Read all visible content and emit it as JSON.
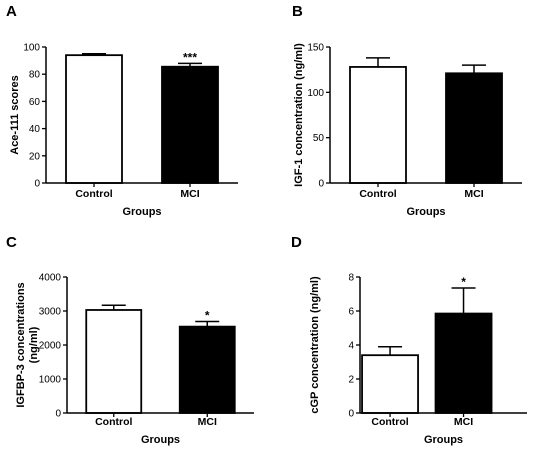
{
  "chart_data": [
    {
      "panel": "A",
      "type": "bar",
      "categories": [
        "Control",
        "MCI"
      ],
      "values": [
        94,
        85.5
      ],
      "errors": [
        1,
        2.5
      ],
      "bar_fills": [
        "#ffffff",
        "#000000"
      ],
      "significance": [
        "",
        "***"
      ],
      "xlabel": "Groups",
      "ylabel": "Ace-111 scores",
      "ylim": [
        0,
        100
      ],
      "yticks": [
        0,
        20,
        40,
        60,
        80,
        100
      ],
      "grid": false
    },
    {
      "panel": "B",
      "type": "bar",
      "categories": [
        "Control",
        "MCI"
      ],
      "values": [
        128,
        121
      ],
      "errors": [
        10,
        9
      ],
      "bar_fills": [
        "#ffffff",
        "#000000"
      ],
      "significance": [
        "",
        ""
      ],
      "xlabel": "Groups",
      "ylabel": "IGF-1 concentration (ng/ml)",
      "ylim": [
        0,
        150
      ],
      "yticks": [
        0,
        50,
        100,
        150
      ],
      "grid": false
    },
    {
      "panel": "C",
      "type": "bar",
      "categories": [
        "Control",
        "MCI"
      ],
      "values": [
        3030,
        2540
      ],
      "errors": [
        140,
        150
      ],
      "bar_fills": [
        "#ffffff",
        "#000000"
      ],
      "significance": [
        "",
        "*"
      ],
      "xlabel": "Groups",
      "ylabel": "IGFBP-3 concentrations (ng/ml)",
      "ylim": [
        0,
        4000
      ],
      "yticks": [
        0,
        1000,
        2000,
        3000,
        4000
      ],
      "grid": false
    },
    {
      "panel": "D",
      "type": "bar",
      "categories": [
        "Control",
        "MCI"
      ],
      "values": [
        3.4,
        5.85
      ],
      "errors": [
        0.5,
        1.5
      ],
      "bar_fills": [
        "#ffffff",
        "#000000"
      ],
      "significance": [
        "",
        "*"
      ],
      "xlabel": "Groups",
      "ylabel": "cGP concentration (ng/ml)",
      "ylim": [
        0,
        8
      ],
      "yticks": [
        0,
        2,
        4,
        6,
        8
      ],
      "grid": false
    }
  ]
}
